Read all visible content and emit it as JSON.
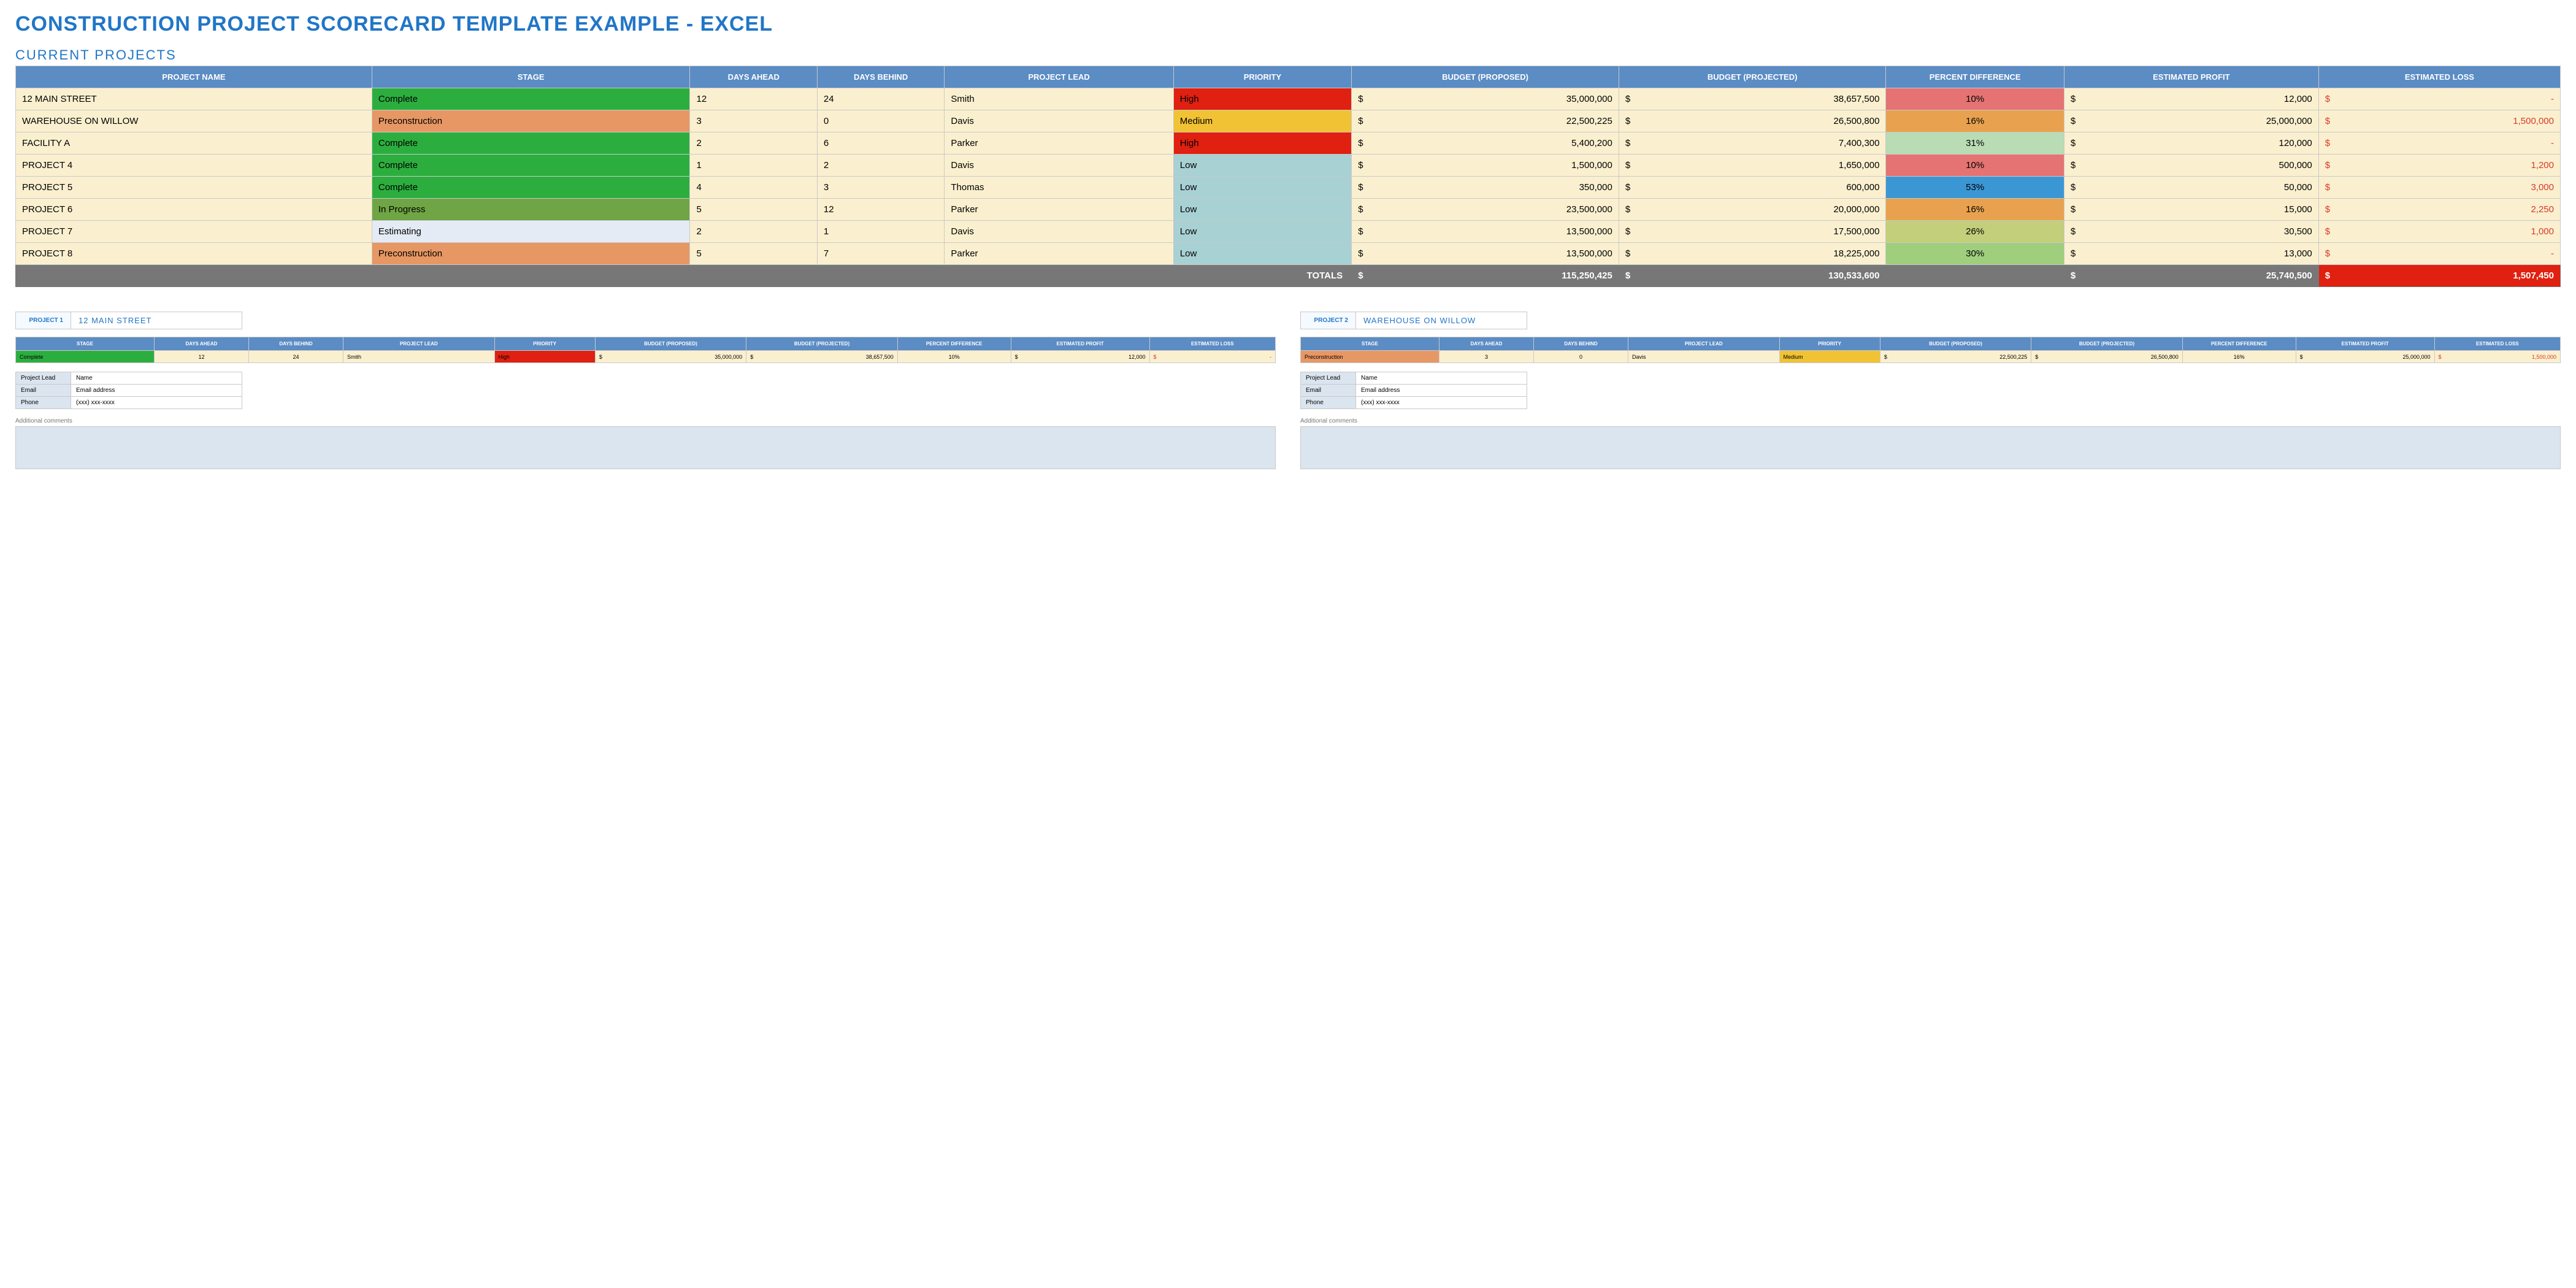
{
  "title": "CONSTRUCTION PROJECT SCORECARD TEMPLATE EXAMPLE - EXCEL",
  "section": "CURRENT PROJECTS",
  "colors": {
    "header_bg": "#5b8cc4",
    "header_text": "#ffffff",
    "row_bg": "#faf0cf",
    "border": "#c9c9c9",
    "title": "#2176c7",
    "totals_bg": "#777777",
    "loss_total_bg": "#e02010",
    "stage_complete": "#2cae3f",
    "stage_preconstruction": "#e79764",
    "stage_inprogress": "#6fa544",
    "stage_estimating": "#e4ebf4",
    "priority_high": "#e02010",
    "priority_medium": "#f1c233",
    "priority_low": "#a8d1d4",
    "pct_red": "#e57373",
    "pct_orange": "#e8a24f",
    "pct_lightgreen": "#b9dcb4",
    "pct_blue": "#3a97d4",
    "pct_olive": "#c3cf7a",
    "pct_green2": "#9fcf7d",
    "loss_text": "#d83a2a",
    "contact_bg": "#dbe5ef"
  },
  "columns": [
    "PROJECT NAME",
    "STAGE",
    "DAYS AHEAD",
    "DAYS BEHIND",
    "PROJECT LEAD",
    "PRIORITY",
    "BUDGET (PROPOSED)",
    "BUDGET (PROJECTED)",
    "PERCENT DIFFERENCE",
    "ESTIMATED PROFIT",
    "ESTIMATED LOSS"
  ],
  "col_widths_pct": [
    14,
    12.5,
    5,
    5,
    9,
    7,
    10.5,
    10.5,
    7,
    10,
    9.5
  ],
  "rows": [
    {
      "name": "12 MAIN STREET",
      "stage": "Complete",
      "stage_color": "#2cae3f",
      "days_ahead": "12",
      "days_behind": "24",
      "lead": "Smith",
      "priority": "High",
      "priority_color": "#e02010",
      "budget_proposed": "35,000,000",
      "budget_projected": "38,657,500",
      "pct": "10%",
      "pct_color": "#e57373",
      "profit": "12,000",
      "loss": "-"
    },
    {
      "name": "WAREHOUSE ON WILLOW",
      "stage": "Preconstruction",
      "stage_color": "#e79764",
      "days_ahead": "3",
      "days_behind": "0",
      "lead": "Davis",
      "priority": "Medium",
      "priority_color": "#f1c233",
      "budget_proposed": "22,500,225",
      "budget_projected": "26,500,800",
      "pct": "16%",
      "pct_color": "#e8a24f",
      "profit": "25,000,000",
      "loss": "1,500,000"
    },
    {
      "name": "FACILITY A",
      "stage": "Complete",
      "stage_color": "#2cae3f",
      "days_ahead": "2",
      "days_behind": "6",
      "lead": "Parker",
      "priority": "High",
      "priority_color": "#e02010",
      "budget_proposed": "5,400,200",
      "budget_projected": "7,400,300",
      "pct": "31%",
      "pct_color": "#b9dcb4",
      "profit": "120,000",
      "loss": "-"
    },
    {
      "name": "PROJECT 4",
      "stage": "Complete",
      "stage_color": "#2cae3f",
      "days_ahead": "1",
      "days_behind": "2",
      "lead": "Davis",
      "priority": "Low",
      "priority_color": "#a8d1d4",
      "budget_proposed": "1,500,000",
      "budget_projected": "1,650,000",
      "pct": "10%",
      "pct_color": "#e57373",
      "profit": "500,000",
      "loss": "1,200"
    },
    {
      "name": "PROJECT 5",
      "stage": "Complete",
      "stage_color": "#2cae3f",
      "days_ahead": "4",
      "days_behind": "3",
      "lead": "Thomas",
      "priority": "Low",
      "priority_color": "#a8d1d4",
      "budget_proposed": "350,000",
      "budget_projected": "600,000",
      "pct": "53%",
      "pct_color": "#3a97d4",
      "profit": "50,000",
      "loss": "3,000"
    },
    {
      "name": "PROJECT 6",
      "stage": "In Progress",
      "stage_color": "#6fa544",
      "days_ahead": "5",
      "days_behind": "12",
      "lead": "Parker",
      "priority": "Low",
      "priority_color": "#a8d1d4",
      "budget_proposed": "23,500,000",
      "budget_projected": "20,000,000",
      "pct": "16%",
      "pct_color": "#e8a24f",
      "profit": "15,000",
      "loss": "2,250"
    },
    {
      "name": "PROJECT 7",
      "stage": "Estimating",
      "stage_color": "#e4ebf4",
      "days_ahead": "2",
      "days_behind": "1",
      "lead": "Davis",
      "priority": "Low",
      "priority_color": "#a8d1d4",
      "budget_proposed": "13,500,000",
      "budget_projected": "17,500,000",
      "pct": "26%",
      "pct_color": "#c3cf7a",
      "profit": "30,500",
      "loss": "1,000"
    },
    {
      "name": "PROJECT 8",
      "stage": "Preconstruction",
      "stage_color": "#e79764",
      "days_ahead": "5",
      "days_behind": "7",
      "lead": "Parker",
      "priority": "Low",
      "priority_color": "#a8d1d4",
      "budget_proposed": "13,500,000",
      "budget_projected": "18,225,000",
      "pct": "30%",
      "pct_color": "#9fcf7d",
      "profit": "13,000",
      "loss": "-"
    }
  ],
  "totals": {
    "label": "TOTALS",
    "budget_proposed": "115,250,425",
    "budget_projected": "130,533,600",
    "profit": "25,740,500",
    "loss": "1,507,450"
  },
  "detail_columns": [
    "STAGE",
    "DAYS AHEAD",
    "DAYS BEHIND",
    "PROJECT LEAD",
    "PRIORITY",
    "BUDGET (PROPOSED)",
    "BUDGET (PROJECTED)",
    "PERCENT DIFFERENCE",
    "ESTIMATED PROFIT",
    "ESTIMATED LOSS"
  ],
  "detail_col_widths_pct": [
    11,
    7.5,
    7.5,
    12,
    8,
    12,
    12,
    9,
    11,
    10
  ],
  "details": [
    {
      "label": "PROJECT 1",
      "name": "12 MAIN STREET",
      "row": {
        "stage": "Complete",
        "stage_color": "#2cae3f",
        "days_ahead": "12",
        "days_behind": "24",
        "lead": "Smith",
        "priority": "High",
        "priority_color": "#e02010",
        "budget_proposed": "35,000,000",
        "budget_projected": "38,657,500",
        "pct": "10%",
        "profit": "12,000",
        "loss": "-"
      }
    },
    {
      "label": "PROJECT 2",
      "name": "WAREHOUSE ON WILLOW",
      "row": {
        "stage": "Preconstruction",
        "stage_color": "#e79764",
        "days_ahead": "3",
        "days_behind": "0",
        "lead": "Davis",
        "priority": "Medium",
        "priority_color": "#f1c233",
        "budget_proposed": "22,500,225",
        "budget_projected": "26,500,800",
        "pct": "16%",
        "profit": "25,000,000",
        "loss": "1,500,000"
      }
    }
  ],
  "contact": {
    "rows": [
      {
        "k": "Project Lead",
        "v": "Name"
      },
      {
        "k": "Email",
        "v": "Email address"
      },
      {
        "k": "Phone",
        "v": "(xxx) xxx-xxxx"
      }
    ]
  },
  "comments_label": "Additional comments"
}
